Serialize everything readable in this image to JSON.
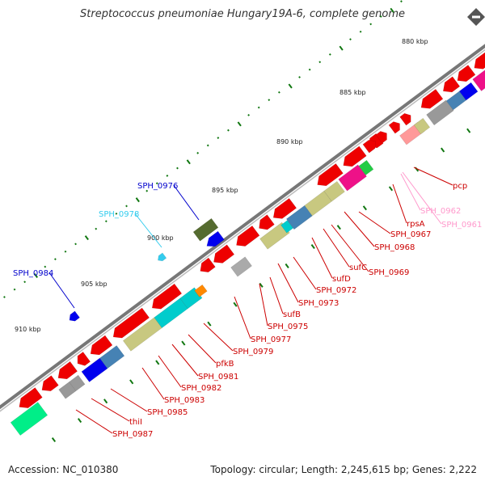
{
  "header": {
    "title": "Streptococcus pneumoniae Hungary19A-6, complete genome"
  },
  "footer": {
    "accession": "Accession: NC_010380",
    "summary": "Topology: circular; Length: 2,245,615 bp; Genes: 2,222"
  },
  "ticks": [
    "880 kbp",
    "885 kbp",
    "890 kbp",
    "895 kbp",
    "900 kbp",
    "905 kbp",
    "910 kbp"
  ],
  "labels": [
    {
      "text": "SPH_0976",
      "color": "#0000cc"
    },
    {
      "text": "SPH_0978",
      "color": "#33ccee"
    },
    {
      "text": "SPH_0984",
      "color": "#0000cc"
    },
    {
      "text": "pcp",
      "color": "#cc0000"
    },
    {
      "text": "SPH_0962",
      "color": "#ff99cc"
    },
    {
      "text": "SPH_0961",
      "color": "#ff99cc"
    },
    {
      "text": "rpsA",
      "color": "#cc0000"
    },
    {
      "text": "SPH_0967",
      "color": "#cc0000"
    },
    {
      "text": "SPH_0968",
      "color": "#cc0000"
    },
    {
      "text": "SPH_0969",
      "color": "#cc0000"
    },
    {
      "text": "sufC",
      "color": "#cc0000"
    },
    {
      "text": "sufD",
      "color": "#cc0000"
    },
    {
      "text": "SPH_0972",
      "color": "#cc0000"
    },
    {
      "text": "SPH_0973",
      "color": "#cc0000"
    },
    {
      "text": "sufB",
      "color": "#cc0000"
    },
    {
      "text": "SPH_0975",
      "color": "#cc0000"
    },
    {
      "text": "SPH_0977",
      "color": "#cc0000"
    },
    {
      "text": "SPH_0979",
      "color": "#cc0000"
    },
    {
      "text": "pfkB",
      "color": "#cc0000"
    },
    {
      "text": "SPH_0981",
      "color": "#cc0000"
    },
    {
      "text": "SPH_0982",
      "color": "#cc0000"
    },
    {
      "text": "SPH_0983",
      "color": "#cc0000"
    },
    {
      "text": "SPH_0985",
      "color": "#cc0000"
    },
    {
      "text": "thiI",
      "color": "#cc0000"
    },
    {
      "text": "SPH_0987",
      "color": "#cc0000"
    }
  ],
  "colors": {
    "cds": "#ee0000",
    "backbone": "#777777",
    "ticks": "#117711",
    "olive": "#556b2f",
    "khaki": "#c8c880",
    "cyan": "#00cccc",
    "steelblue": "#4682b4",
    "magenta": "#ee1188",
    "blue": "#0000ee",
    "grey": "#999999",
    "green": "#22cc44",
    "pink": "#ff9999",
    "orange": "#ff8800",
    "lightblue": "#33ccee",
    "teal": "#00ee88"
  },
  "icons": {
    "zoom": "zoom-out-icon"
  }
}
